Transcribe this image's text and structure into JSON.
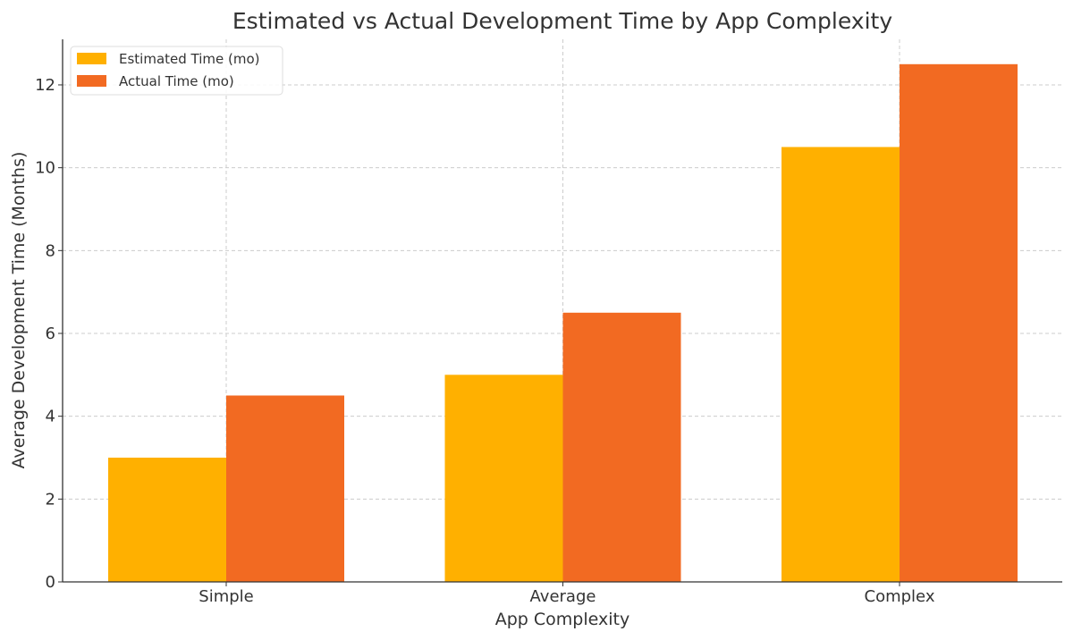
{
  "chart_data": {
    "type": "bar",
    "title": "Estimated vs Actual Development Time by App Complexity",
    "xlabel": "App Complexity",
    "ylabel": "Average Development Time (Months)",
    "categories": [
      "Simple",
      "Average",
      "Complex"
    ],
    "series": [
      {
        "name": "Estimated Time (mo)",
        "values": [
          3,
          5,
          10.5
        ],
        "color": "#FFB000"
      },
      {
        "name": "Actual Time (mo)",
        "values": [
          4.5,
          6.5,
          12.5
        ],
        "color": "#F26A22"
      }
    ],
    "ylim": [
      0,
      13.1
    ],
    "yticks": [
      0,
      2,
      4,
      6,
      8,
      10,
      12
    ],
    "grid": true,
    "legend_position": "top-left"
  }
}
